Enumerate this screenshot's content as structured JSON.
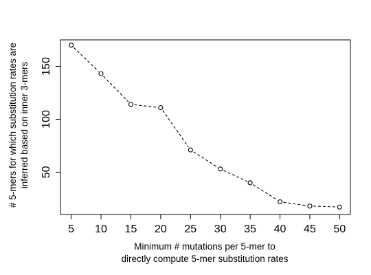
{
  "chart_data": {
    "type": "line",
    "title": "",
    "x": [
      5,
      10,
      15,
      20,
      25,
      30,
      35,
      40,
      45,
      50
    ],
    "series": [
      {
        "values": [
          170,
          143,
          114,
          111,
          71,
          53,
          40,
          22,
          18,
          17
        ],
        "line_style": "dashed",
        "marker": "open-circle",
        "color": "#000000"
      }
    ],
    "x_ticks": [
      5,
      10,
      15,
      20,
      25,
      30,
      35,
      40,
      45,
      50
    ],
    "y_ticks": [
      50,
      100,
      150
    ],
    "xlim": [
      3.2,
      51.8
    ],
    "ylim": [
      10,
      175
    ],
    "xlabel_lines": [
      "Minimum # mutations per 5-mer to",
      "directly compute 5-mer substitution rates"
    ],
    "ylabel_lines": [
      "# 5-mers for which substitution rates are",
      "inferred based on inner 3-mers"
    ],
    "grid": false,
    "legend": "none"
  }
}
